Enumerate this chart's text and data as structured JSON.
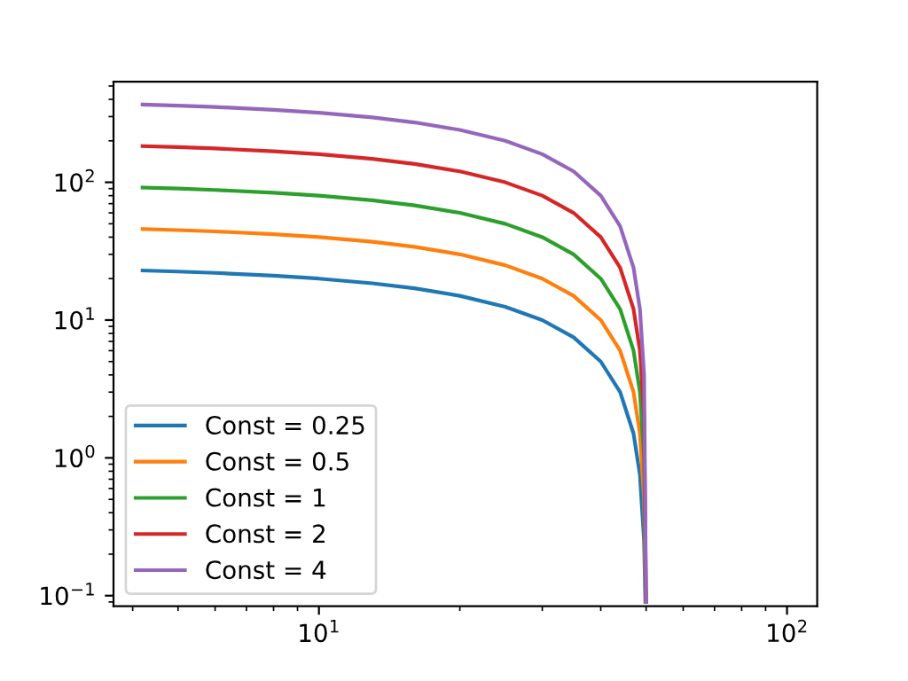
{
  "chart_data": {
    "type": "line",
    "log": "xy",
    "legend": "lower left",
    "grid": false,
    "xlim": [
      3.64,
      116
    ],
    "ylim": [
      0.084,
      537
    ],
    "xticks": [
      {
        "value": 10,
        "label": "10$^{1}$"
      },
      {
        "value": 100,
        "label": "10$^{2}$"
      }
    ],
    "yticks": [
      {
        "value": 0.1,
        "label": "10$^{−1}$"
      },
      {
        "value": 1,
        "label": "10$^{0}$"
      },
      {
        "value": 10,
        "label": "10$^{1}$"
      },
      {
        "value": 100,
        "label": "10$^{2}$"
      }
    ],
    "series": [
      {
        "name": "Const = 0.25",
        "color": "#1f77b4",
        "x": [
          4.2,
          5,
          6,
          8,
          10,
          13,
          16,
          20,
          25,
          30,
          35,
          40,
          44,
          47,
          48.5,
          49.5,
          49.82
        ],
        "values": [
          22.9,
          22.5,
          22,
          21,
          20,
          18.5,
          17,
          15,
          12.5,
          10,
          7.5,
          5,
          3,
          1.5,
          0.75,
          0.25,
          0.09
        ]
      },
      {
        "name": "Const = 0.5",
        "color": "#ff7f0e",
        "x": [
          4.2,
          5,
          6,
          8,
          10,
          13,
          16,
          20,
          25,
          30,
          35,
          40,
          44,
          47,
          48.5,
          49.5,
          49.91
        ],
        "values": [
          45.8,
          45,
          44,
          42,
          40,
          37,
          34,
          30,
          25,
          20,
          15,
          10,
          6,
          3,
          1.5,
          0.5,
          0.09
        ]
      },
      {
        "name": "Const = 1",
        "color": "#2ca02c",
        "x": [
          4.2,
          5,
          6,
          8,
          10,
          13,
          16,
          20,
          25,
          30,
          35,
          40,
          44,
          47,
          48.5,
          49.5,
          49.955
        ],
        "values": [
          91.6,
          90,
          88,
          84,
          80,
          74,
          68,
          60,
          50,
          40,
          30,
          20,
          12,
          6,
          3,
          1,
          0.09
        ]
      },
      {
        "name": "Const = 2",
        "color": "#d62728",
        "x": [
          4.2,
          5,
          6,
          8,
          10,
          13,
          16,
          20,
          25,
          30,
          35,
          40,
          44,
          47,
          48.5,
          49.5,
          49.978
        ],
        "values": [
          183.2,
          180,
          176,
          168,
          160,
          148,
          136,
          120,
          100,
          80,
          60,
          40,
          24,
          12,
          6,
          2,
          0.09
        ]
      },
      {
        "name": "Const = 4",
        "color": "#9467bd",
        "x": [
          4.2,
          5,
          6,
          8,
          10,
          13,
          16,
          20,
          25,
          30,
          35,
          40,
          44,
          47,
          48.5,
          49.5,
          49.989
        ],
        "values": [
          366.4,
          360,
          352,
          336,
          320,
          296,
          272,
          240,
          200,
          160,
          120,
          80,
          48,
          24,
          12,
          4,
          0.09
        ]
      }
    ]
  }
}
